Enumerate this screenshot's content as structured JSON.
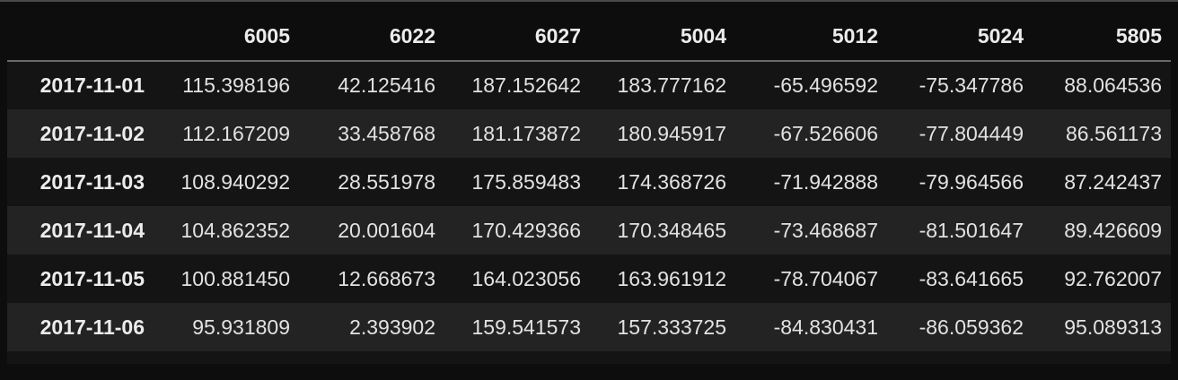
{
  "table": {
    "columns": [
      "",
      "6005",
      "6022",
      "6027",
      "5004",
      "5012",
      "5024",
      "5805"
    ],
    "rows": [
      {
        "index": "2017-11-01",
        "values": [
          "115.398196",
          "42.125416",
          "187.152642",
          "183.777162",
          "-65.496592",
          "-75.347786",
          "88.064536"
        ]
      },
      {
        "index": "2017-11-02",
        "values": [
          "112.167209",
          "33.458768",
          "181.173872",
          "180.945917",
          "-67.526606",
          "-77.804449",
          "86.561173"
        ]
      },
      {
        "index": "2017-11-03",
        "values": [
          "108.940292",
          "28.551978",
          "175.859483",
          "174.368726",
          "-71.942888",
          "-79.964566",
          "87.242437"
        ]
      },
      {
        "index": "2017-11-04",
        "values": [
          "104.862352",
          "20.001604",
          "170.429366",
          "170.348465",
          "-73.468687",
          "-81.501647",
          "89.426609"
        ]
      },
      {
        "index": "2017-11-05",
        "values": [
          "100.881450",
          "12.668673",
          "164.023056",
          "163.961912",
          "-78.704067",
          "-83.641665",
          "92.762007"
        ]
      },
      {
        "index": "2017-11-06",
        "values": [
          "95.931809",
          "2.393902",
          "159.541573",
          "157.333725",
          "-84.830431",
          "-86.059362",
          "95.089313"
        ]
      }
    ]
  }
}
